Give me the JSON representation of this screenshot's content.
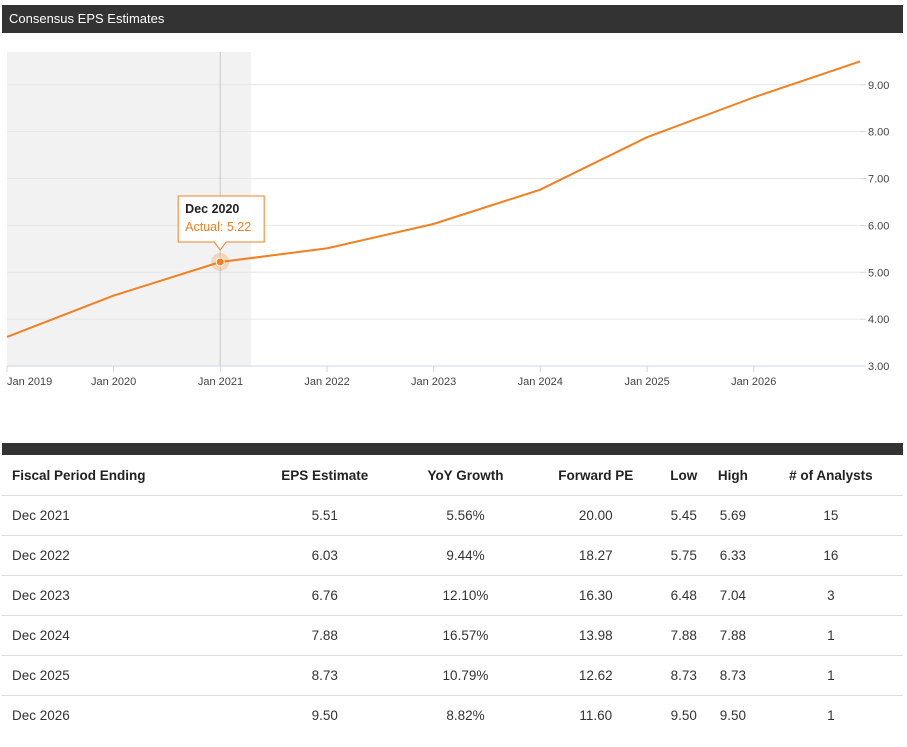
{
  "header": {
    "title": "Consensus EPS Estimates"
  },
  "colors": {
    "line": "#f08020",
    "header_bg": "#333333",
    "band": "#f2f2f2",
    "grid": "#e6e6e6"
  },
  "chart_data": {
    "type": "line",
    "title": "",
    "xlabel": "",
    "ylabel": "",
    "x_ticks": [
      "Jan 2019",
      "Jan 2020",
      "Jan 2021",
      "Jan 2022",
      "Jan 2023",
      "Jan 2024",
      "Jan 2025",
      "Jan 2026"
    ],
    "y_ticks": [
      "3.00",
      "4.00",
      "5.00",
      "6.00",
      "7.00",
      "8.00",
      "9.00"
    ],
    "ylim": [
      3.0,
      9.7
    ],
    "xlim": [
      "2019-01-01",
      "2026-12-31"
    ],
    "actual_range": [
      "2019-01-01",
      "2021-04-15"
    ],
    "grid": true,
    "series": [
      {
        "points": [
          {
            "x": "2019-01-01",
            "y": 3.62
          },
          {
            "x": "2019-12-31",
            "y": 4.5
          },
          {
            "x": "2020-12-31",
            "y": 5.22
          },
          {
            "x": "2021-12-31",
            "y": 5.51
          },
          {
            "x": "2022-12-31",
            "y": 6.03
          },
          {
            "x": "2023-12-31",
            "y": 6.76
          },
          {
            "x": "2024-12-31",
            "y": 7.88
          },
          {
            "x": "2025-12-31",
            "y": 8.73
          },
          {
            "x": "2026-12-31",
            "y": 9.5
          }
        ]
      }
    ],
    "tooltip": {
      "title": "Dec 2020",
      "label": "Actual:",
      "value": "5.22",
      "x": "2020-12-31",
      "y": 5.22
    }
  },
  "table": {
    "headers": [
      "Fiscal Period Ending",
      "EPS Estimate",
      "YoY Growth",
      "Forward PE",
      "Low",
      "High",
      "# of Analysts"
    ],
    "rows": [
      [
        "Dec 2021",
        "5.51",
        "5.56%",
        "20.00",
        "5.45",
        "5.69",
        "15"
      ],
      [
        "Dec 2022",
        "6.03",
        "9.44%",
        "18.27",
        "5.75",
        "6.33",
        "16"
      ],
      [
        "Dec 2023",
        "6.76",
        "12.10%",
        "16.30",
        "6.48",
        "7.04",
        "3"
      ],
      [
        "Dec 2024",
        "7.88",
        "16.57%",
        "13.98",
        "7.88",
        "7.88",
        "1"
      ],
      [
        "Dec 2025",
        "8.73",
        "10.79%",
        "12.62",
        "8.73",
        "8.73",
        "1"
      ],
      [
        "Dec 2026",
        "9.50",
        "8.82%",
        "11.60",
        "9.50",
        "9.50",
        "1"
      ]
    ]
  }
}
